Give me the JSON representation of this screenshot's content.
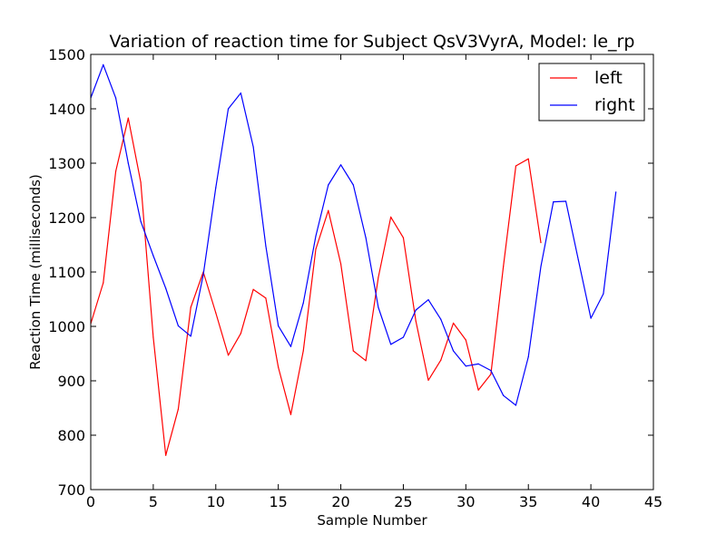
{
  "chart_data": {
    "type": "line",
    "title": "Variation of reaction time for Subject QsV3VyrA, Model: le_rp",
    "xlabel": "Sample Number",
    "ylabel": "Reaction Time (milliseconds)",
    "xlim": [
      0,
      45
    ],
    "ylim": [
      700,
      1500
    ],
    "xticks": [
      0,
      5,
      10,
      15,
      20,
      25,
      30,
      35,
      40,
      45
    ],
    "yticks": [
      700,
      800,
      900,
      1000,
      1100,
      1200,
      1300,
      1400,
      1500
    ],
    "grid": false,
    "legend_position": "top-right",
    "series": [
      {
        "name": "left",
        "color": "#ff0000",
        "x": [
          0,
          1,
          2,
          3,
          4,
          5,
          6,
          7,
          8,
          9,
          10,
          11,
          12,
          13,
          14,
          15,
          16,
          17,
          18,
          19,
          20,
          21,
          22,
          23,
          24,
          25,
          26,
          27,
          28,
          29,
          30,
          31,
          32,
          33,
          34,
          35,
          36
        ],
        "values": [
          1005,
          1080,
          1285,
          1383,
          1265,
          980,
          763,
          848,
          1035,
          1100,
          1025,
          947,
          987,
          1068,
          1052,
          925,
          838,
          955,
          1142,
          1213,
          1115,
          955,
          937,
          1090,
          1201,
          1163,
          1010,
          901,
          938,
          1006,
          975,
          883,
          912,
          1110,
          1295,
          1308,
          1154
        ]
      },
      {
        "name": "right",
        "color": "#0000ff",
        "x": [
          0,
          1,
          2,
          3,
          4,
          5,
          6,
          7,
          8,
          9,
          10,
          11,
          12,
          13,
          14,
          15,
          16,
          17,
          18,
          19,
          20,
          21,
          22,
          23,
          24,
          25,
          26,
          27,
          28,
          29,
          30,
          31,
          32,
          33,
          34,
          35,
          36,
          37,
          38,
          39,
          40,
          41,
          42
        ],
        "values": [
          1420,
          1481,
          1420,
          1300,
          1193,
          1130,
          1070,
          1001,
          982,
          1095,
          1255,
          1400,
          1429,
          1330,
          1148,
          1001,
          963,
          1043,
          1166,
          1260,
          1297,
          1260,
          1163,
          1035,
          967,
          980,
          1030,
          1049,
          1013,
          955,
          927,
          931,
          919,
          873,
          855,
          944,
          1110,
          1229,
          1230,
          1122,
          1015,
          1060,
          1247
        ]
      }
    ]
  }
}
